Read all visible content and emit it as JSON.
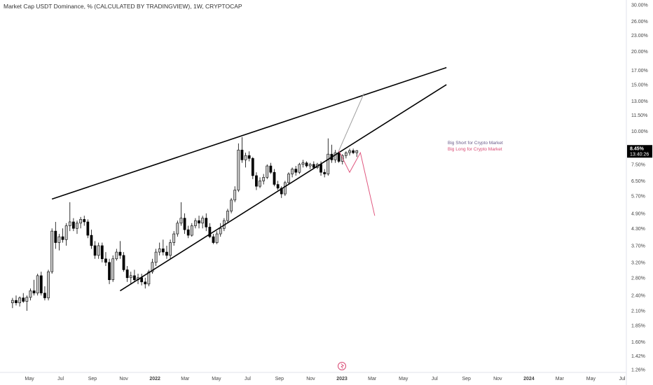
{
  "title": "Market Cap USDT Dominance, % (CALCULATED BY TRADINGVIEW), 1W, CRYPTOCAP",
  "price_badge": {
    "value": "8.45%",
    "countdown": "13:40:26",
    "color": "#000000"
  },
  "colors": {
    "up_candle": "#c8c8c8",
    "down_candle": "#000000",
    "trendline": "#000000",
    "short_scenario": "#9e9e9e",
    "long_scenario": "#e0577f",
    "short_label": "#6a5c8a",
    "long_label": "#d94a74"
  },
  "annotations": {
    "short": "Big Short for Crypto Market",
    "long": "Big Long for Crypto Market"
  },
  "logo_icon": "tradingview-logo-icon",
  "chart_data": {
    "type": "candlestick",
    "scale": "log",
    "y_ticks": [
      "30.00%",
      "26.00%",
      "23.00%",
      "20.00%",
      "17.00%",
      "15.00%",
      "13.00%",
      "11.50%",
      "10.00%",
      "8.45%",
      "7.50%",
      "6.50%",
      "5.70%",
      "4.90%",
      "4.30%",
      "3.70%",
      "3.20%",
      "2.80%",
      "2.40%",
      "2.10%",
      "1.85%",
      "1.60%",
      "1.42%",
      "1.26%"
    ],
    "y_tick_values": [
      30.0,
      26.0,
      23.0,
      20.0,
      17.0,
      15.0,
      13.0,
      11.5,
      10.0,
      8.45,
      7.5,
      6.5,
      5.7,
      4.9,
      4.3,
      3.7,
      3.2,
      2.8,
      2.4,
      2.1,
      1.85,
      1.6,
      1.42,
      1.26
    ],
    "x_ticks": [
      "May",
      "Jul",
      "Sep",
      "Nov",
      "2022",
      "Mar",
      "May",
      "Jul",
      "Sep",
      "Nov",
      "2023",
      "Mar",
      "May",
      "Jul",
      "Sep",
      "Nov",
      "2024",
      "Mar",
      "May",
      "Jul"
    ],
    "x_tick_dates": [
      "2021-05-01",
      "2021-07-01",
      "2021-09-01",
      "2021-11-01",
      "2022-01-01",
      "2022-03-01",
      "2022-05-01",
      "2022-07-01",
      "2022-09-01",
      "2022-11-01",
      "2023-01-01",
      "2023-03-01",
      "2023-05-01",
      "2023-07-01",
      "2023-09-01",
      "2023-11-01",
      "2024-01-01",
      "2024-03-01",
      "2024-05-01",
      "2024-07-01"
    ],
    "ohlc": [
      [
        2.25,
        2.35,
        2.15,
        2.3
      ],
      [
        2.3,
        2.4,
        2.2,
        2.25
      ],
      [
        2.25,
        2.38,
        2.18,
        2.35
      ],
      [
        2.35,
        2.45,
        2.25,
        2.28
      ],
      [
        2.28,
        2.4,
        2.1,
        2.36
      ],
      [
        2.36,
        2.55,
        2.3,
        2.5
      ],
      [
        2.5,
        2.75,
        2.4,
        2.45
      ],
      [
        2.45,
        2.9,
        2.4,
        2.85
      ],
      [
        2.85,
        2.95,
        2.4,
        2.45
      ],
      [
        2.45,
        2.6,
        2.3,
        2.35
      ],
      [
        2.35,
        3.0,
        2.3,
        2.95
      ],
      [
        2.95,
        4.3,
        2.9,
        4.2
      ],
      [
        4.2,
        4.55,
        3.6,
        3.8
      ],
      [
        3.8,
        4.1,
        3.55,
        4.0
      ],
      [
        4.0,
        4.3,
        3.8,
        3.9
      ],
      [
        3.9,
        4.5,
        3.7,
        4.4
      ],
      [
        4.4,
        5.4,
        4.2,
        4.55
      ],
      [
        4.55,
        4.7,
        4.2,
        4.3
      ],
      [
        4.3,
        4.6,
        4.1,
        4.5
      ],
      [
        4.5,
        4.75,
        4.3,
        4.65
      ],
      [
        4.65,
        4.8,
        4.4,
        4.55
      ],
      [
        4.55,
        4.65,
        3.95,
        4.05
      ],
      [
        4.05,
        4.25,
        3.6,
        3.7
      ],
      [
        3.7,
        3.85,
        3.3,
        3.4
      ],
      [
        3.4,
        3.8,
        3.3,
        3.7
      ],
      [
        3.7,
        3.8,
        3.2,
        3.3
      ],
      [
        3.3,
        3.5,
        3.1,
        3.2
      ],
      [
        3.2,
        3.3,
        2.65,
        2.75
      ],
      [
        2.75,
        3.4,
        2.7,
        3.3
      ],
      [
        3.3,
        3.6,
        3.25,
        3.5
      ],
      [
        3.5,
        3.85,
        3.3,
        3.4
      ],
      [
        3.4,
        3.5,
        2.95,
        3.0
      ],
      [
        3.0,
        3.1,
        2.7,
        2.8
      ],
      [
        2.8,
        2.95,
        2.65,
        2.85
      ],
      [
        2.85,
        3.0,
        2.7,
        2.75
      ],
      [
        2.75,
        2.9,
        2.65,
        2.8
      ],
      [
        2.8,
        2.9,
        2.62,
        2.7
      ],
      [
        2.7,
        2.8,
        2.55,
        2.65
      ],
      [
        2.65,
        3.0,
        2.6,
        2.95
      ],
      [
        2.95,
        3.3,
        2.9,
        3.2
      ],
      [
        3.2,
        3.6,
        3.1,
        3.5
      ],
      [
        3.5,
        3.8,
        3.4,
        3.6
      ],
      [
        3.6,
        3.9,
        3.4,
        3.5
      ],
      [
        3.5,
        3.7,
        3.3,
        3.4
      ],
      [
        3.4,
        3.9,
        3.3,
        3.8
      ],
      [
        3.8,
        4.2,
        3.7,
        4.1
      ],
      [
        4.1,
        4.6,
        4.0,
        4.5
      ],
      [
        4.5,
        5.4,
        4.4,
        4.7
      ],
      [
        4.7,
        4.9,
        4.1,
        4.25
      ],
      [
        4.25,
        4.4,
        3.95,
        4.05
      ],
      [
        4.05,
        4.5,
        4.0,
        4.4
      ],
      [
        4.4,
        4.7,
        4.3,
        4.6
      ],
      [
        4.6,
        4.8,
        4.3,
        4.5
      ],
      [
        4.5,
        4.8,
        4.3,
        4.7
      ],
      [
        4.7,
        4.9,
        4.2,
        4.35
      ],
      [
        4.35,
        4.5,
        3.95,
        4.0
      ],
      [
        4.0,
        4.1,
        3.75,
        3.8
      ],
      [
        3.8,
        4.2,
        3.75,
        4.1
      ],
      [
        4.1,
        4.5,
        4.0,
        4.3
      ],
      [
        4.3,
        4.7,
        4.2,
        4.6
      ],
      [
        4.6,
        5.1,
        4.5,
        5.0
      ],
      [
        5.0,
        5.6,
        4.9,
        5.5
      ],
      [
        5.5,
        6.2,
        5.4,
        6.0
      ],
      [
        6.0,
        9.0,
        5.9,
        8.5
      ],
      [
        8.5,
        9.5,
        7.6,
        7.8
      ],
      [
        7.8,
        8.3,
        7.3,
        8.1
      ],
      [
        8.1,
        8.4,
        7.7,
        7.9
      ],
      [
        7.9,
        8.0,
        6.6,
        6.8
      ],
      [
        6.8,
        7.0,
        6.0,
        6.2
      ],
      [
        6.2,
        6.7,
        6.1,
        6.5
      ],
      [
        6.5,
        6.9,
        6.3,
        6.7
      ],
      [
        6.7,
        7.5,
        6.6,
        7.4
      ],
      [
        7.4,
        7.6,
        6.9,
        7.0
      ],
      [
        7.0,
        7.2,
        6.2,
        6.3
      ],
      [
        6.3,
        6.5,
        6.0,
        6.1
      ],
      [
        6.1,
        6.2,
        5.6,
        5.8
      ],
      [
        5.8,
        6.5,
        5.7,
        6.4
      ],
      [
        6.4,
        7.0,
        6.3,
        6.9
      ],
      [
        6.9,
        7.3,
        6.7,
        7.2
      ],
      [
        7.2,
        7.4,
        6.8,
        7.0
      ],
      [
        7.0,
        7.6,
        6.9,
        7.5
      ],
      [
        7.5,
        7.8,
        7.3,
        7.6
      ],
      [
        7.6,
        7.7,
        7.3,
        7.4
      ],
      [
        7.4,
        7.6,
        7.2,
        7.5
      ],
      [
        7.5,
        7.7,
        7.2,
        7.3
      ],
      [
        7.3,
        7.6,
        7.2,
        7.5
      ],
      [
        7.5,
        7.7,
        6.8,
        7.0
      ],
      [
        7.0,
        7.2,
        6.7,
        6.9
      ],
      [
        6.9,
        9.4,
        6.8,
        8.2
      ],
      [
        8.2,
        8.9,
        7.6,
        7.8
      ],
      [
        7.8,
        8.5,
        7.6,
        8.3
      ],
      [
        8.3,
        8.4,
        7.6,
        7.7
      ],
      [
        7.7,
        8.2,
        7.5,
        8.1
      ],
      [
        8.1,
        8.4,
        7.9,
        8.3
      ],
      [
        8.3,
        8.6,
        8.1,
        8.45
      ],
      [
        8.45,
        8.6,
        8.2,
        8.3
      ],
      [
        8.3,
        8.5,
        8.0,
        8.45
      ]
    ],
    "upper_trendline": {
      "from": [
        "2021-06-14",
        5.55
      ],
      "to": [
        "2023-07-24",
        17.4
      ]
    },
    "lower_trendline": {
      "from": [
        "2021-10-25",
        2.5
      ],
      "to": [
        "2023-07-24",
        15.0
      ]
    },
    "short_scenario_path": [
      [
        "2022-12-26",
        8.45
      ],
      [
        "2023-02-13",
        13.9
      ]
    ],
    "long_scenario_path": [
      [
        "2022-12-26",
        8.45
      ],
      [
        "2023-01-16",
        7.0
      ],
      [
        "2023-02-06",
        8.3
      ],
      [
        "2023-03-06",
        4.8
      ]
    ]
  }
}
